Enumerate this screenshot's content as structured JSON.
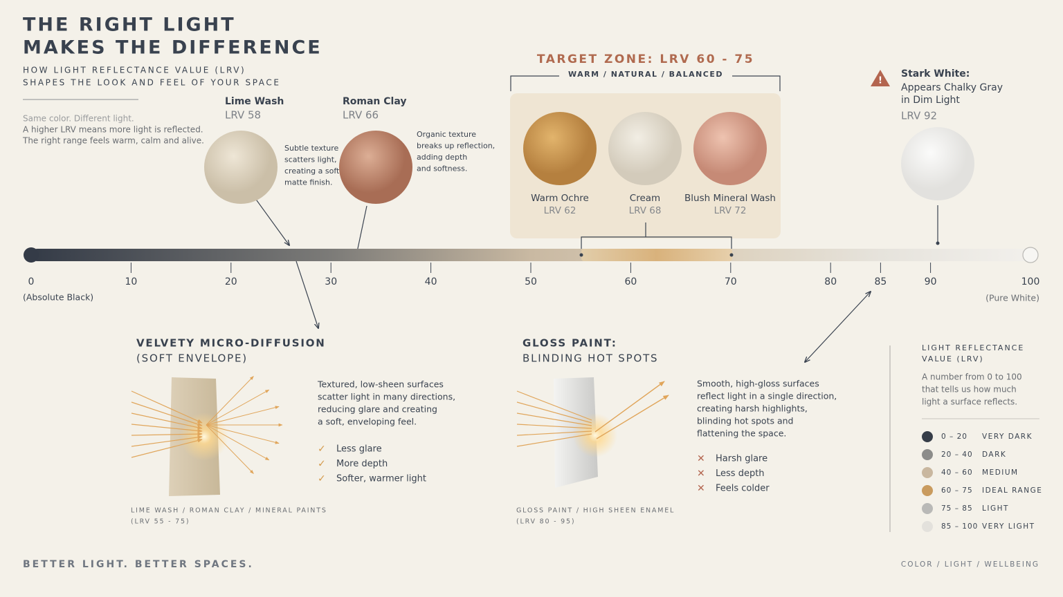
{
  "header": {
    "title": [
      "THE RIGHT LIGHT",
      "MAKES THE DIFFERENCE"
    ],
    "subtitle": [
      "HOW LIGHT REFLECTANCE VALUE (LRV)",
      "SHAPES THE LOOK AND FEEL OF YOUR SPACE"
    ],
    "intro": [
      "Same color. Different light.",
      "A higher LRV means more light is reflected.",
      "The right range feels warm, calm and alive."
    ]
  },
  "samples": [
    {
      "name": "Lime Wash",
      "lrv": "LRV 58",
      "note": [
        "Subtle texture",
        "scatters light,",
        "creating a soft,",
        "matte finish."
      ]
    },
    {
      "name": "Roman Clay",
      "lrv": "LRV 66",
      "note": [
        "Organic texture",
        "breaks up reflection,",
        "adding depth",
        "and softness."
      ]
    }
  ],
  "target": {
    "title": "TARGET ZONE: LRV 60 - 75",
    "tags": "WARM  /  NATURAL  /  BALANCED",
    "swatches": [
      {
        "name": "Warm Ochre",
        "lrv": "LRV 62"
      },
      {
        "name": "Cream",
        "lrv": "LRV 68"
      },
      {
        "name": "Blush Mineral Wash",
        "lrv": "LRV 72"
      }
    ]
  },
  "stark": {
    "title": "Stark White:",
    "lines": [
      "Appears Chalky Gray",
      "in Dim Light"
    ],
    "lrv": "LRV 92"
  },
  "scale": {
    "ticks": [
      0,
      10,
      20,
      30,
      40,
      50,
      60,
      70,
      80,
      85,
      90,
      100
    ],
    "min_label": "(Absolute Black)",
    "max_label": "(Pure White)"
  },
  "panels": [
    {
      "title": [
        "VELVETY MICRO-DIFFUSION",
        "(SOFT ENVELOPE)"
      ],
      "body": [
        "Textured, low-sheen surfaces",
        "scatter light in many directions,",
        "reducing glare and creating",
        "a soft, enveloping feel."
      ],
      "points": [
        "Less glare",
        "More depth",
        "Softer, warmer light"
      ],
      "footnote": [
        "LIME WASH  /  ROMAN CLAY  /  MINERAL PAINTS",
        "(LRV 55 - 75)"
      ]
    },
    {
      "title": [
        "GLOSS PAINT:",
        "BLINDING HOT SPOTS"
      ],
      "body": [
        "Smooth, high-gloss surfaces",
        "reflect light in a single direction,",
        "creating harsh highlights,",
        "blinding hot spots and",
        "flattening the space."
      ],
      "points": [
        "Harsh glare",
        "Less depth",
        "Feels colder"
      ],
      "footnote": [
        "GLOSS PAINT  /  HIGH SHEEN ENAMEL",
        "(LRV 80 - 95)"
      ]
    }
  ],
  "legend": {
    "title": [
      "LIGHT REFLECTANCE",
      "VALUE (LRV)"
    ],
    "description": [
      "A number from 0 to 100",
      "that tells us how much",
      "light a surface reflects."
    ],
    "items": [
      {
        "range": "0 – 20",
        "label": "VERY DARK",
        "color": "#363d48"
      },
      {
        "range": "20 – 40",
        "label": "DARK",
        "color": "#8c8c8a"
      },
      {
        "range": "40 – 60",
        "label": "MEDIUM",
        "color": "#c9b79f"
      },
      {
        "range": "60 – 75",
        "label": "IDEAL RANGE",
        "color": "#c99b5e"
      },
      {
        "range": "75 – 85",
        "label": "LIGHT",
        "color": "#b9b9b7"
      },
      {
        "range": "85 – 100",
        "label": "VERY LIGHT",
        "color": "#e3e1dc"
      }
    ]
  },
  "footer": {
    "left": "BETTER LIGHT. BETTER SPACES.",
    "right": "COLOR   /   LIGHT   /   WELLBEING"
  }
}
